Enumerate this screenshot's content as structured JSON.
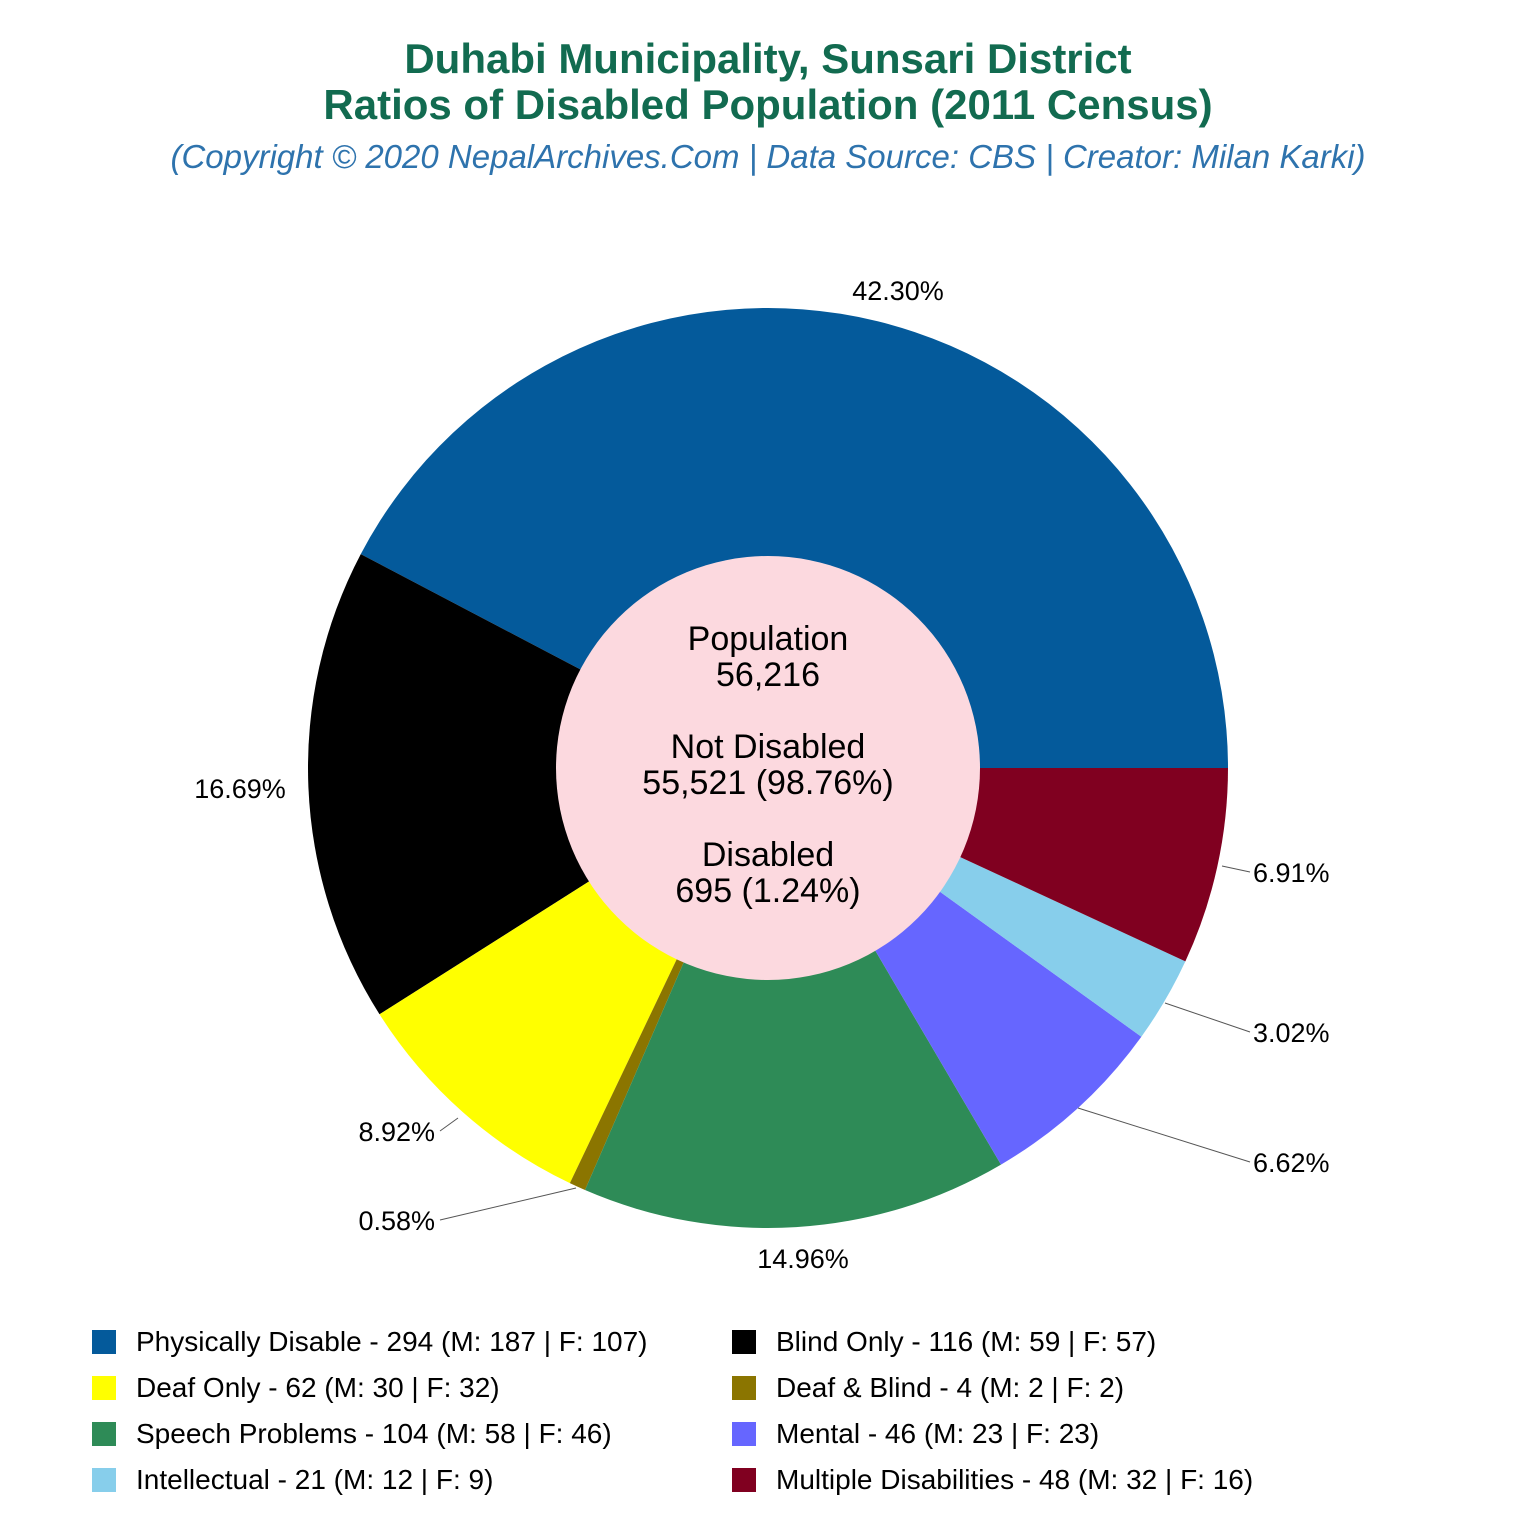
{
  "title_line1": "Duhabi Municipality, Sunsari District",
  "title_line2": "Ratios of Disabled Population (2011 Census)",
  "subtitle": "(Copyright © 2020 NepalArchives.Com | Data Source: CBS | Creator: Milan Karki)",
  "center": {
    "population_label": "Population",
    "population_value": "56,216",
    "not_disabled_label": "Not Disabled",
    "not_disabled_value": "55,521 (98.76%)",
    "disabled_label": "Disabled",
    "disabled_value": "695 (1.24%)",
    "color": "#fcd9df"
  },
  "chart_data": {
    "type": "pie",
    "donut": true,
    "title": "Duhabi Municipality, Sunsari District Ratios of Disabled Population (2011 Census)",
    "legend_position": "bottom",
    "slices": [
      {
        "name": "Physically Disable",
        "value": 294,
        "male": 187,
        "female": 107,
        "percent_label": "42.30%",
        "legend": "Physically Disable - 294 (M: 187 | F: 107)",
        "color": "#045a9b"
      },
      {
        "name": "Blind Only",
        "value": 116,
        "male": 59,
        "female": 57,
        "percent_label": "16.69%",
        "legend": "Blind Only - 116 (M: 59 | F: 57)",
        "color": "#000000"
      },
      {
        "name": "Deaf Only",
        "value": 62,
        "male": 30,
        "female": 32,
        "percent_label": "8.92%",
        "legend": "Deaf Only - 62 (M: 30 | F: 32)",
        "color": "#ffff00"
      },
      {
        "name": "Deaf & Blind",
        "value": 4,
        "male": 2,
        "female": 2,
        "percent_label": "0.58%",
        "legend": "Deaf & Blind - 4 (M: 2 | F: 2)",
        "color": "#8b7500"
      },
      {
        "name": "Speech Problems",
        "value": 104,
        "male": 58,
        "female": 46,
        "percent_label": "14.96%",
        "legend": "Speech Problems - 104 (M: 58 | F: 46)",
        "color": "#2e8b57"
      },
      {
        "name": "Mental",
        "value": 46,
        "male": 23,
        "female": 23,
        "percent_label": "6.62%",
        "legend": "Mental - 46 (M: 23 | F: 23)",
        "color": "#6666ff"
      },
      {
        "name": "Intellectual",
        "value": 21,
        "male": 12,
        "female": 9,
        "percent_label": "3.02%",
        "legend": "Intellectual - 21 (M: 12 | F: 9)",
        "color": "#87ceeb"
      },
      {
        "name": "Multiple Disabilities",
        "value": 48,
        "male": 32,
        "female": 16,
        "percent_label": "6.91%",
        "legend": "Multiple Disabilities - 48 (M: 32 | F: 16)",
        "color": "#800020"
      }
    ]
  }
}
